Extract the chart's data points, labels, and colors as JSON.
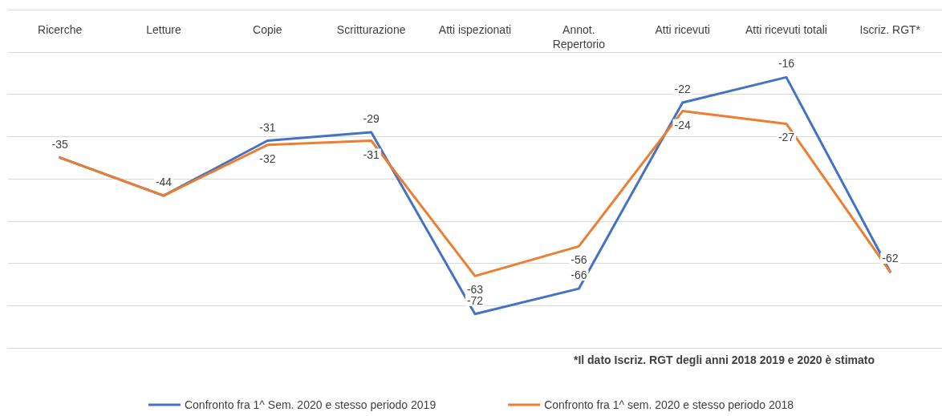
{
  "chart_data": {
    "type": "line",
    "categories": [
      "Ricerche",
      "Letture",
      "Copie",
      "Scritturazione",
      "Atti ispezionati",
      "Annot.\nRepertorio",
      "Atti ricevuti",
      "Atti ricevuti totali",
      "Iscriz. RGT*"
    ],
    "series": [
      {
        "name": "Confronto fra 1^ Sem. 2020 e stesso periodo 2019",
        "color": "#4472c4",
        "values": [
          -35,
          -44,
          -31,
          -29,
          -72,
          -66,
          -22,
          -16,
          -62
        ],
        "value_labels": [
          "-35",
          "-44",
          "-31",
          "-29",
          "-72",
          "-66",
          "-22",
          "-16",
          "-62"
        ]
      },
      {
        "name": "Confronto fra 1^ sem. 2020 e stesso periodo 2018",
        "color": "#ed7d31",
        "values": [
          -35,
          -44,
          -32,
          -31,
          -63,
          -56,
          -24,
          -27,
          -62
        ],
        "value_labels": [
          null,
          null,
          "-32",
          "-31",
          "-63",
          "-56",
          "-24",
          "-27",
          null
        ]
      }
    ],
    "ylim": [
      -80,
      0
    ],
    "yticks": [
      {
        "value": -80,
        "label": null
      },
      {
        "value": -70,
        "label": null
      },
      {
        "value": -60,
        "label": null
      },
      {
        "value": -50,
        "label": null
      },
      {
        "value": -40,
        "label": null
      },
      {
        "value": -30,
        "label": null
      },
      {
        "value": -20,
        "label": null
      },
      {
        "value": -10,
        "label": null
      },
      {
        "value": 0,
        "label": null
      }
    ],
    "tick_labels": "x",
    "grid": "y",
    "legend": "bottom",
    "marker": "none",
    "line_style": "solid",
    "annotations": [
      "*Il dato Iscriz. RGT degli anni 2018 2019 e 2020 è stimato"
    ]
  }
}
